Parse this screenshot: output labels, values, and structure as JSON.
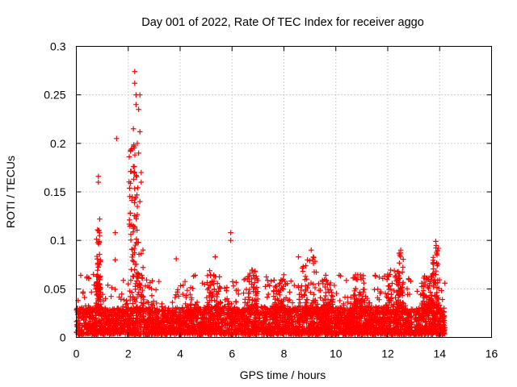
{
  "chart_data": {
    "type": "scatter",
    "title": "Day 001 of 2022, Rate Of TEC Index for receiver aggo",
    "xlabel": "GPS time / hours",
    "ylabel": "ROTI / TECUs",
    "xlim": [
      0,
      16
    ],
    "ylim": [
      0,
      0.3
    ],
    "x_ticks": [
      "0",
      "2",
      "4",
      "6",
      "8",
      "10",
      "12",
      "14",
      "16"
    ],
    "y_ticks": [
      "0",
      "0.05",
      "0.1",
      "0.15",
      "0.2",
      "0.25",
      "0.3"
    ],
    "grid": true,
    "marker": "+",
    "color": "#ff0000",
    "series": [
      {
        "name": "ROTI",
        "notable_points": [
          {
            "x": 2.25,
            "y": 0.274
          },
          {
            "x": 2.25,
            "y": 0.262
          },
          {
            "x": 2.3,
            "y": 0.25
          },
          {
            "x": 2.45,
            "y": 0.25
          },
          {
            "x": 2.3,
            "y": 0.24
          },
          {
            "x": 2.4,
            "y": 0.235
          },
          {
            "x": 2.2,
            "y": 0.215
          },
          {
            "x": 2.45,
            "y": 0.212
          },
          {
            "x": 2.35,
            "y": 0.2
          },
          {
            "x": 2.4,
            "y": 0.19
          },
          {
            "x": 1.55,
            "y": 0.205
          },
          {
            "x": 0.85,
            "y": 0.166
          },
          {
            "x": 0.85,
            "y": 0.16
          },
          {
            "x": 2.5,
            "y": 0.17
          },
          {
            "x": 2.5,
            "y": 0.16
          },
          {
            "x": 2.35,
            "y": 0.135
          },
          {
            "x": 2.45,
            "y": 0.14
          },
          {
            "x": 0.9,
            "y": 0.122
          },
          {
            "x": 2.2,
            "y": 0.115
          },
          {
            "x": 1.5,
            "y": 0.108
          },
          {
            "x": 0.85,
            "y": 0.11
          },
          {
            "x": 5.95,
            "y": 0.108
          },
          {
            "x": 5.95,
            "y": 0.1
          },
          {
            "x": 13.85,
            "y": 0.099
          },
          {
            "x": 9.05,
            "y": 0.09
          },
          {
            "x": 12.5,
            "y": 0.09
          },
          {
            "x": 3.85,
            "y": 0.081
          },
          {
            "x": 5.35,
            "y": 0.083
          },
          {
            "x": 1.5,
            "y": 0.08
          },
          {
            "x": 13.9,
            "y": 0.085
          }
        ]
      }
    ]
  }
}
